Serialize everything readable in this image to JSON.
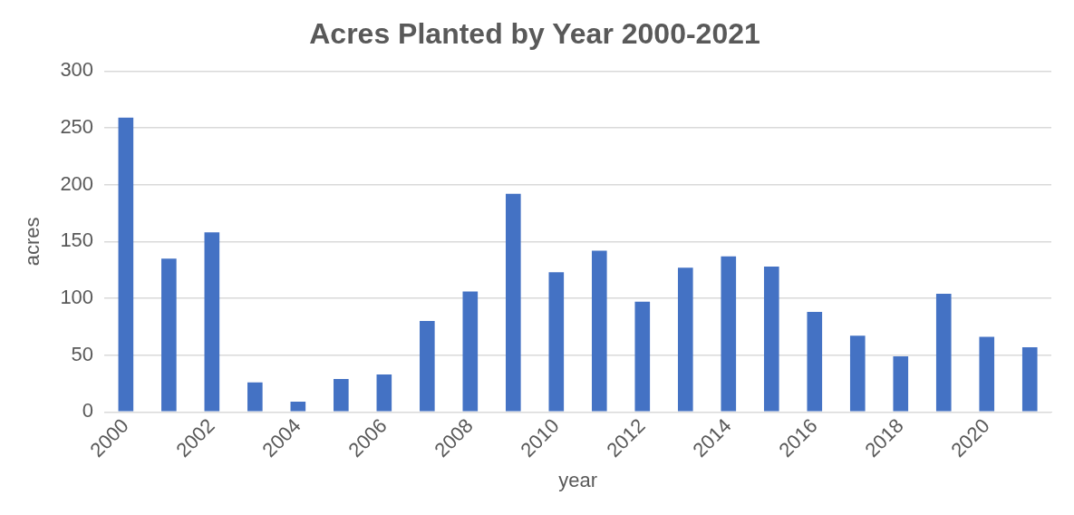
{
  "chart_data": {
    "type": "bar",
    "title": "Acres Planted by Year 2000-2021",
    "xlabel": "year",
    "ylabel": "acres",
    "categories": [
      "2000",
      null,
      "2002",
      null,
      "2004",
      null,
      "2006",
      null,
      "2008",
      null,
      "2010",
      null,
      "2012",
      null,
      "2014",
      null,
      "2016",
      null,
      "2018",
      null,
      "2020",
      null
    ],
    "values": [
      259,
      135,
      158,
      26,
      9,
      29,
      33,
      80,
      106,
      192,
      123,
      142,
      97,
      127,
      137,
      128,
      88,
      67,
      49,
      104,
      66,
      57
    ],
    "color": "#4472c4",
    "ylim": [
      0,
      300
    ],
    "yticks": [
      0,
      50,
      100,
      150,
      200,
      250,
      300
    ],
    "grid": "y",
    "legend": false
  }
}
